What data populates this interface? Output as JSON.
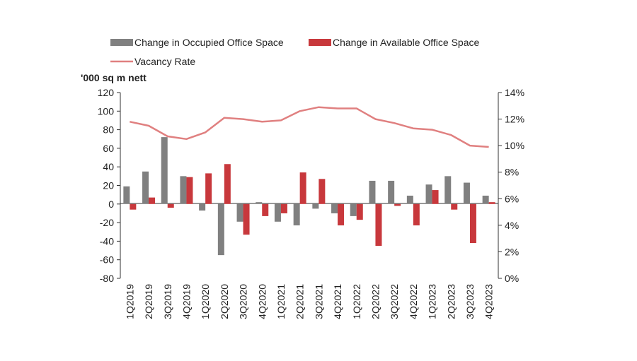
{
  "chart_data": {
    "type": "bar",
    "title": "",
    "ylabel": "'000 sq m nett",
    "ylim": [
      -80,
      120
    ],
    "y_ticks": [
      "120",
      "100",
      "80",
      "60",
      "40",
      "20",
      "0",
      "-20",
      "-40",
      "-60",
      "-80"
    ],
    "y2_ticks": [
      "14%",
      "12%",
      "10%",
      "8%",
      "6%",
      "4%",
      "2%",
      "0%"
    ],
    "y2lim": [
      0,
      14
    ],
    "categories": [
      "1Q2019",
      "2Q2019",
      "3Q2019",
      "4Q2019",
      "1Q2020",
      "2Q2020",
      "3Q2020",
      "4Q2020",
      "1Q2021",
      "2Q2021",
      "3Q2021",
      "4Q2021",
      "1Q2022",
      "2Q2022",
      "3Q2022",
      "4Q2022",
      "1Q2023",
      "2Q2023",
      "3Q2023",
      "4Q2023"
    ],
    "series": [
      {
        "name": "Change in Occupied Office Space",
        "type": "bar",
        "color": "#808080",
        "values": [
          19,
          35,
          72,
          30,
          -7,
          -55,
          -19,
          2,
          -19,
          -23,
          -5,
          -10,
          -13,
          25,
          25,
          9,
          21,
          30,
          23,
          9
        ]
      },
      {
        "name": "Change in Available Office Space",
        "type": "bar",
        "color": "#c8383c",
        "values": [
          -6,
          7,
          -4,
          29,
          33,
          43,
          -33,
          -13,
          -10,
          34,
          27,
          -23,
          -17,
          -45,
          -2,
          -23,
          15,
          -6,
          -42,
          2
        ]
      },
      {
        "name": "Vacancy Rate",
        "type": "line",
        "axis": "right",
        "color": "#e08080",
        "values": [
          11.8,
          11.5,
          10.7,
          10.5,
          11.0,
          12.1,
          12.0,
          11.8,
          11.9,
          12.6,
          12.9,
          12.8,
          12.8,
          12.0,
          11.7,
          11.3,
          11.2,
          10.8,
          10.0,
          9.9
        ]
      }
    ],
    "legend_position": "top-left",
    "grid": false
  }
}
